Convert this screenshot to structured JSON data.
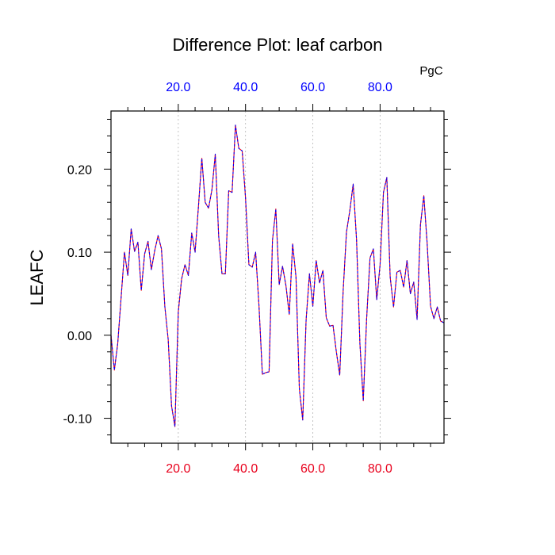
{
  "chart_data": {
    "type": "line",
    "title": "Difference Plot: leaf carbon",
    "ylabel": "LEAFC",
    "units_label": "PgC",
    "xlim": [
      0,
      99
    ],
    "ylim": [
      -0.13,
      0.27
    ],
    "x_ticks": [
      "20.0",
      "40.0",
      "60.0",
      "80.0"
    ],
    "x_tick_values": [
      20,
      40,
      60,
      80
    ],
    "y_ticks": [
      "-0.10",
      "0.00",
      "0.10",
      "0.20"
    ],
    "y_tick_values": [
      -0.1,
      0.0,
      0.1,
      0.2
    ],
    "grid": "vertical dashed at x ticks",
    "colors": {
      "bottom_axis_labels": "#e8001c",
      "top_axis_labels": "#0000ff",
      "line_dash_1": "#ff0000",
      "line_dash_2": "#0000ff"
    },
    "series": [
      {
        "x": [
          0,
          1,
          2,
          3,
          4,
          5,
          6,
          7,
          8,
          9,
          10,
          11,
          12,
          13,
          14,
          15,
          16,
          17,
          18,
          19,
          20,
          21,
          22,
          23,
          24,
          25,
          26,
          27,
          28,
          29,
          30,
          31,
          32,
          33,
          34,
          35,
          36,
          37,
          38,
          39,
          40,
          41,
          42,
          43,
          44,
          45,
          46,
          47,
          48,
          49,
          50,
          51,
          52,
          53,
          54,
          55,
          56,
          57,
          58,
          59,
          60,
          61,
          62,
          63,
          64,
          65,
          66,
          67,
          68,
          69,
          70,
          71,
          72,
          73,
          74,
          75,
          76,
          77,
          78,
          79,
          80,
          81,
          82,
          83,
          84,
          85,
          86,
          87,
          88,
          89,
          90,
          91,
          92,
          93,
          94,
          95,
          96,
          97,
          98,
          99
        ],
        "values": [
          0.0,
          -0.042,
          -0.01,
          0.045,
          0.1,
          0.072,
          0.128,
          0.101,
          0.112,
          0.054,
          0.098,
          0.113,
          0.079,
          0.102,
          0.12,
          0.104,
          0.035,
          -0.005,
          -0.085,
          -0.11,
          0.028,
          0.068,
          0.085,
          0.072,
          0.123,
          0.1,
          0.155,
          0.213,
          0.16,
          0.153,
          0.175,
          0.218,
          0.12,
          0.074,
          0.074,
          0.174,
          0.172,
          0.253,
          0.225,
          0.222,
          0.165,
          0.085,
          0.082,
          0.1,
          0.035,
          -0.047,
          -0.045,
          -0.044,
          0.114,
          0.152,
          0.061,
          0.083,
          0.06,
          0.025,
          0.11,
          0.07,
          -0.065,
          -0.102,
          0.018,
          0.074,
          0.035,
          0.09,
          0.063,
          0.078,
          0.021,
          0.011,
          0.012,
          -0.02,
          -0.048,
          0.052,
          0.124,
          0.15,
          0.182,
          0.115,
          -0.01,
          -0.079,
          0.02,
          0.093,
          0.104,
          0.043,
          0.085,
          0.172,
          0.19,
          0.07,
          0.034,
          0.076,
          0.078,
          0.058,
          0.09,
          0.05,
          0.064,
          0.019,
          0.133,
          0.168,
          0.11,
          0.035,
          0.02,
          0.034,
          0.017,
          0.015
        ]
      }
    ]
  }
}
